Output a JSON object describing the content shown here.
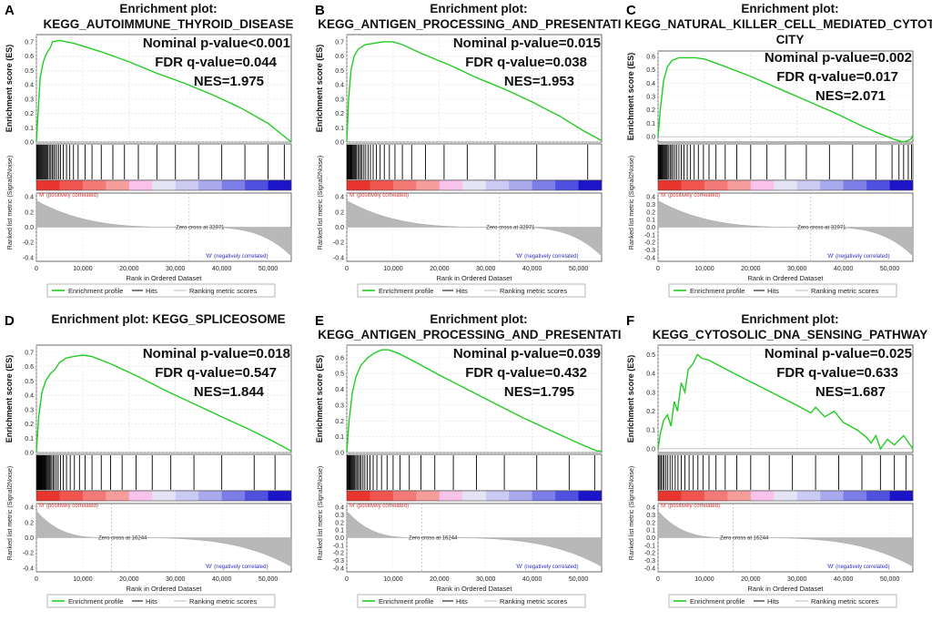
{
  "colors": {
    "es_line": "#22cc22",
    "hits": "#000000",
    "metric_fill": "#b8b8b8",
    "pos_label": "#e03030",
    "neg_label": "#3030c0",
    "heat": [
      "#e8362f",
      "#f05550",
      "#f37a76",
      "#f69e9b",
      "#f8c2ea",
      "#e4e4f4",
      "#cacaf2",
      "#a9a9ee",
      "#7d7de8",
      "#4f4fe0",
      "#1c14c8"
    ]
  },
  "shared": {
    "x_label": "Rank in Ordered Dataset",
    "y_label_es": "Enrichment score (ES)",
    "y_label_metric": "Ranked list metric (Signal2Noise)",
    "pos_label": "'M' (positively correlated)",
    "neg_label": "'W' (negatively correlated)",
    "legend": [
      "Enrichment profile",
      "Hits",
      "Ranking metric scores"
    ],
    "x_ticks": [
      "0",
      "10,000",
      "20,000",
      "30,000",
      "40,000",
      "50,000"
    ]
  },
  "chart_data": [
    {
      "type": "line",
      "letter": "A",
      "title_lines": [
        "Enrichment plot:",
        "KEGG_AUTOIMMUNE_THYROID_DISEASE"
      ],
      "stats": [
        "Nominal p-value<0.001",
        "FDR q-value=0.044",
        "NES=1.975"
      ],
      "es_ticks": [
        "0.7",
        "0.6",
        "0.5",
        "0.4",
        "0.3",
        "0.2",
        "0.1",
        "0.0"
      ],
      "es_ylim": [
        0,
        0.75
      ],
      "es_curve": [
        [
          0,
          0
        ],
        [
          400,
          0.22
        ],
        [
          800,
          0.45
        ],
        [
          1500,
          0.56
        ],
        [
          2200,
          0.62
        ],
        [
          3000,
          0.66
        ],
        [
          3500,
          0.7
        ],
        [
          5000,
          0.71
        ],
        [
          6500,
          0.7
        ],
        [
          8000,
          0.69
        ],
        [
          10000,
          0.67
        ],
        [
          14000,
          0.63
        ],
        [
          20000,
          0.56
        ],
        [
          26000,
          0.48
        ],
        [
          32000,
          0.41
        ],
        [
          38000,
          0.33
        ],
        [
          44000,
          0.24
        ],
        [
          50000,
          0.13
        ],
        [
          55000,
          0
        ]
      ],
      "metric_ticks": [
        "0.4",
        "0.2",
        "0.0",
        "-0.2",
        "-0.4"
      ],
      "metric_ylim": [
        -0.45,
        0.45
      ],
      "metric_top": 0.35,
      "metric_bottom": -0.38,
      "zero_cross": 32971,
      "zero_cross_label": "Zero cross at 32971",
      "hits": [
        120,
        300,
        500,
        700,
        900,
        1100,
        1300,
        1500,
        1700,
        1900,
        2100,
        2300,
        2500,
        2800,
        3100,
        3400,
        3700,
        4000,
        4400,
        4800,
        5200,
        5800,
        6500,
        7200,
        8000,
        9000,
        10500,
        12000,
        14000,
        16500,
        19000,
        22000,
        26000,
        30000,
        35000,
        40000,
        45000,
        50000,
        53500
      ]
    },
    {
      "type": "line",
      "letter": "B",
      "title_lines": [
        "Enrichment plot:",
        "KEGG_ANTIGEN_PROCESSING_AND_PRESENTATION"
      ],
      "stats": [
        "Nominal p-value=0.015",
        "FDR q-value=0.038",
        "NES=1.953"
      ],
      "es_ticks": [
        "0.7",
        "0.6",
        "0.5",
        "0.4",
        "0.3",
        "0.2",
        "0.1",
        "0.0"
      ],
      "es_ylim": [
        0,
        0.75
      ],
      "es_curve": [
        [
          0,
          0
        ],
        [
          400,
          0.3
        ],
        [
          900,
          0.5
        ],
        [
          1600,
          0.6
        ],
        [
          2500,
          0.65
        ],
        [
          4000,
          0.68
        ],
        [
          6000,
          0.69
        ],
        [
          8000,
          0.7
        ],
        [
          10000,
          0.7
        ],
        [
          12000,
          0.68
        ],
        [
          16000,
          0.62
        ],
        [
          22000,
          0.54
        ],
        [
          28000,
          0.45
        ],
        [
          34000,
          0.37
        ],
        [
          40000,
          0.28
        ],
        [
          46000,
          0.18
        ],
        [
          51000,
          0.08
        ],
        [
          55000,
          0.01
        ]
      ],
      "metric_ticks": [
        "0.4",
        "0.2",
        "0.0",
        "-0.2",
        "-0.4"
      ],
      "metric_ylim": [
        -0.45,
        0.45
      ],
      "metric_top": 0.35,
      "metric_bottom": -0.38,
      "zero_cross": 32971,
      "zero_cross_label": "Zero cross at 32971",
      "hits": [
        80,
        200,
        350,
        500,
        650,
        800,
        950,
        1100,
        1300,
        1500,
        1700,
        1900,
        2100,
        2400,
        2700,
        3000,
        3300,
        3700,
        4100,
        4600,
        5100,
        5700,
        6400,
        7200,
        8100,
        9200,
        10400,
        12000,
        14000,
        17000,
        21000,
        26000,
        32000,
        41000,
        52000
      ]
    },
    {
      "type": "line",
      "letter": "C",
      "title_lines": [
        "Enrichment plot:",
        "KEGG_NATURAL_KILLER_CELL_MEDIATED_CYTOTOXI",
        "CITY"
      ],
      "stats": [
        "Nominal p-value=0.002",
        "FDR q-value=0.017",
        "NES=2.071"
      ],
      "es_ticks": [
        "0.6",
        "0.5",
        "0.4",
        "0.3",
        "0.2",
        "0.1",
        "0.0"
      ],
      "es_ylim": [
        -0.04,
        0.64
      ],
      "es_curve": [
        [
          0,
          0
        ],
        [
          500,
          0.2
        ],
        [
          1200,
          0.42
        ],
        [
          2000,
          0.52
        ],
        [
          3000,
          0.57
        ],
        [
          4500,
          0.59
        ],
        [
          6000,
          0.59
        ],
        [
          8000,
          0.59
        ],
        [
          10000,
          0.58
        ],
        [
          14000,
          0.53
        ],
        [
          20000,
          0.45
        ],
        [
          26000,
          0.36
        ],
        [
          32000,
          0.27
        ],
        [
          38000,
          0.18
        ],
        [
          44000,
          0.08
        ],
        [
          48000,
          0.02
        ],
        [
          51000,
          -0.02
        ],
        [
          53000,
          -0.04
        ],
        [
          54500,
          -0.02
        ],
        [
          55000,
          0.01
        ]
      ],
      "metric_ticks": [
        "0.4",
        "0.3",
        "0.2",
        "0.1",
        "0.0",
        "-0.1",
        "-0.2",
        "-0.3",
        "-0.4"
      ],
      "metric_ylim": [
        -0.45,
        0.45
      ],
      "metric_top": 0.35,
      "metric_bottom": -0.38,
      "zero_cross": 32971,
      "zero_cross_label": "Zero cross at 32971",
      "hits": [
        100,
        250,
        400,
        550,
        700,
        850,
        1000,
        1200,
        1400,
        1600,
        1800,
        2000,
        2300,
        2600,
        2900,
        3200,
        3600,
        4000,
        4500,
        5000,
        5600,
        6300,
        7000,
        7800,
        8700,
        9800,
        11000,
        12500,
        14500,
        17000,
        20000,
        23500,
        27500,
        32000,
        37000,
        42000,
        47000,
        50500,
        52000,
        53000,
        54000,
        54700
      ]
    },
    {
      "type": "line",
      "letter": "D",
      "title_lines": [
        "Enrichment plot: KEGG_SPLICEOSOME"
      ],
      "stats": [
        "Nominal p-value=0.018",
        "FDR q-value=0.547",
        "NES=1.844"
      ],
      "es_ticks": [
        "0.7",
        "0.6",
        "0.5",
        "0.4",
        "0.3",
        "0.2",
        "0.1",
        "0.0"
      ],
      "es_ylim": [
        0,
        0.75
      ],
      "es_curve": [
        [
          0,
          0
        ],
        [
          500,
          0.25
        ],
        [
          1200,
          0.42
        ],
        [
          2000,
          0.5
        ],
        [
          3000,
          0.55
        ],
        [
          4000,
          0.58
        ],
        [
          5000,
          0.63
        ],
        [
          6500,
          0.66
        ],
        [
          8000,
          0.67
        ],
        [
          10000,
          0.68
        ],
        [
          12000,
          0.67
        ],
        [
          16000,
          0.62
        ],
        [
          22000,
          0.53
        ],
        [
          28000,
          0.43
        ],
        [
          34000,
          0.34
        ],
        [
          40000,
          0.25
        ],
        [
          46000,
          0.16
        ],
        [
          51000,
          0.08
        ],
        [
          55000,
          0.01
        ]
      ],
      "metric_ticks": [
        "0.4",
        "0.2",
        "0.0",
        "-0.2",
        "-0.4"
      ],
      "metric_ylim": [
        -0.45,
        0.45
      ],
      "metric_top": 0.35,
      "metric_bottom": -0.38,
      "zero_cross": 16244,
      "zero_cross_label": "Zero cross at 16244",
      "hits": [
        100,
        220,
        340,
        460,
        580,
        700,
        820,
        940,
        1060,
        1180,
        1300,
        1450,
        1600,
        1750,
        1900,
        2050,
        2200,
        2400,
        2600,
        2800,
        3000,
        3300,
        3600,
        3900,
        4300,
        4700,
        5200,
        5800,
        6500,
        7300,
        8200,
        9300,
        10500,
        12000,
        14000,
        16000,
        18500,
        21500,
        25000,
        29000,
        34000,
        40000,
        47000,
        51500
      ]
    },
    {
      "type": "line",
      "letter": "E",
      "title_lines": [
        "Enrichment plot:",
        "KEGG_ANTIGEN_PROCESSING_AND_PRESENTATION"
      ],
      "stats": [
        "Nominal p-value=0.039",
        "FDR q-value=0.432",
        "NES=1.795"
      ],
      "es_ticks": [
        "0.6",
        "0.5",
        "0.4",
        "0.3",
        "0.2",
        "0.1",
        "0.0"
      ],
      "es_ylim": [
        0,
        0.68
      ],
      "es_curve": [
        [
          0,
          0
        ],
        [
          500,
          0.2
        ],
        [
          1200,
          0.38
        ],
        [
          2000,
          0.48
        ],
        [
          3000,
          0.55
        ],
        [
          4500,
          0.6
        ],
        [
          6000,
          0.63
        ],
        [
          7500,
          0.65
        ],
        [
          9000,
          0.65
        ],
        [
          11000,
          0.63
        ],
        [
          15000,
          0.57
        ],
        [
          20000,
          0.49
        ],
        [
          26000,
          0.4
        ],
        [
          32000,
          0.31
        ],
        [
          38000,
          0.22
        ],
        [
          44000,
          0.14
        ],
        [
          50000,
          0.06
        ],
        [
          54000,
          0.01
        ],
        [
          55000,
          0.01
        ]
      ],
      "metric_ticks": [
        "0.4",
        "0.3",
        "0.2",
        "0.1",
        "0.0",
        "-0.1",
        "-0.2",
        "-0.3",
        "-0.4"
      ],
      "metric_ylim": [
        -0.45,
        0.45
      ],
      "metric_top": 0.35,
      "metric_bottom": -0.38,
      "zero_cross": 16244,
      "zero_cross_label": "Zero cross at 16244",
      "hits": [
        100,
        260,
        420,
        580,
        740,
        900,
        1100,
        1300,
        1500,
        1700,
        1950,
        2200,
        2500,
        2800,
        3100,
        3500,
        3900,
        4400,
        5000,
        5700,
        6500,
        7500,
        8700,
        10000,
        11500,
        13500,
        16000,
        19000,
        23000,
        28000,
        34000,
        41000,
        48000,
        53500
      ]
    },
    {
      "type": "line",
      "letter": "F",
      "title_lines": [
        "Enrichment plot:",
        "KEGG_CYTOSOLIC_DNA_SENSING_PATHWAY"
      ],
      "stats": [
        "Nominal p-value=0.025",
        "FDR q-value=0.633",
        "NES=1.687"
      ],
      "es_ticks": [
        "0.5",
        "0.4",
        "0.3",
        "0.2",
        "0.1",
        "0.0"
      ],
      "es_ylim": [
        -0.02,
        0.55
      ],
      "es_curve": [
        [
          0,
          0
        ],
        [
          500,
          0.08
        ],
        [
          1200,
          0.15
        ],
        [
          2000,
          0.18
        ],
        [
          2800,
          0.12
        ],
        [
          3500,
          0.25
        ],
        [
          4200,
          0.2
        ],
        [
          5000,
          0.35
        ],
        [
          5800,
          0.3
        ],
        [
          6500,
          0.42
        ],
        [
          7500,
          0.45
        ],
        [
          8500,
          0.5
        ],
        [
          9500,
          0.48
        ],
        [
          11000,
          0.47
        ],
        [
          14000,
          0.43
        ],
        [
          18000,
          0.38
        ],
        [
          22000,
          0.33
        ],
        [
          26000,
          0.28
        ],
        [
          30000,
          0.23
        ],
        [
          33000,
          0.19
        ],
        [
          34000,
          0.22
        ],
        [
          36000,
          0.17
        ],
        [
          38000,
          0.2
        ],
        [
          40000,
          0.14
        ],
        [
          43000,
          0.1
        ],
        [
          45000,
          0.06
        ],
        [
          46000,
          0.03
        ],
        [
          47000,
          0.07
        ],
        [
          48000,
          0.0
        ],
        [
          49500,
          0.05
        ],
        [
          51000,
          0.02
        ],
        [
          53000,
          0.07
        ],
        [
          55000,
          0.0
        ]
      ],
      "metric_ticks": [
        "0.4",
        "0.3",
        "0.2",
        "0.1",
        "0.0",
        "-0.1",
        "-0.2",
        "-0.3",
        "-0.4"
      ],
      "metric_ylim": [
        -0.45,
        0.45
      ],
      "metric_top": 0.35,
      "metric_bottom": -0.38,
      "zero_cross": 16244,
      "zero_cross_label": "Zero cross at 16244",
      "hits": [
        150,
        400,
        700,
        1000,
        1300,
        1700,
        2100,
        2600,
        3100,
        3700,
        4300,
        5000,
        5800,
        6700,
        7600,
        8600,
        9700,
        11000,
        12500,
        14500,
        17000,
        20000,
        24000,
        29000,
        34000,
        39000,
        44000,
        48000,
        51000,
        53500
      ]
    }
  ]
}
